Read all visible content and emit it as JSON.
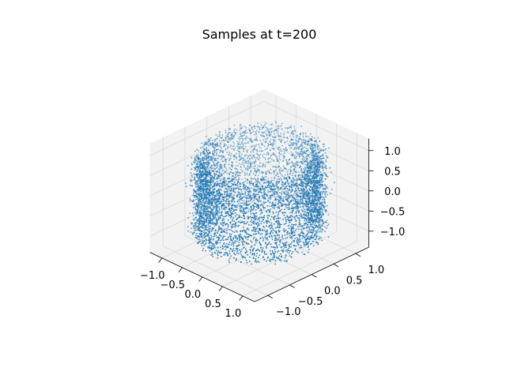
{
  "chart_data": {
    "type": "scatter",
    "projection": "3d",
    "title": "Samples at t=200",
    "xlabel": "",
    "ylabel": "",
    "zlabel": "",
    "xlim": [
      -1.3,
      1.3
    ],
    "ylim": [
      -1.3,
      1.3
    ],
    "zlim": [
      -1.4,
      1.3
    ],
    "x_ticks": [
      "−1.0",
      "−0.5",
      "0.0",
      "0.5",
      "1.0"
    ],
    "x_tick_values": [
      -1.0,
      -0.5,
      0.0,
      0.5,
      1.0
    ],
    "y_ticks": [
      "−1.0",
      "−0.5",
      "0.0",
      "0.5",
      "1.0"
    ],
    "y_tick_values": [
      -1.0,
      -0.5,
      0.0,
      0.5,
      1.0
    ],
    "z_ticks": [
      "−1.0",
      "−0.5",
      "0.0",
      "0.5",
      "1.0"
    ],
    "z_tick_values": [
      -1.0,
      -0.5,
      0.0,
      0.5,
      1.0
    ],
    "grid": true,
    "marker_color": "#1f77b4",
    "pane_color": "#f2f2f2",
    "grid_color": "#d9d9d9",
    "distribution": {
      "shape": "cylindrical shell (hollow tube) around the z axis",
      "radius": 1.0,
      "radius_spread": 0.08,
      "z_range": [
        -1.0,
        1.0
      ],
      "approx_point_count": 6000
    }
  }
}
